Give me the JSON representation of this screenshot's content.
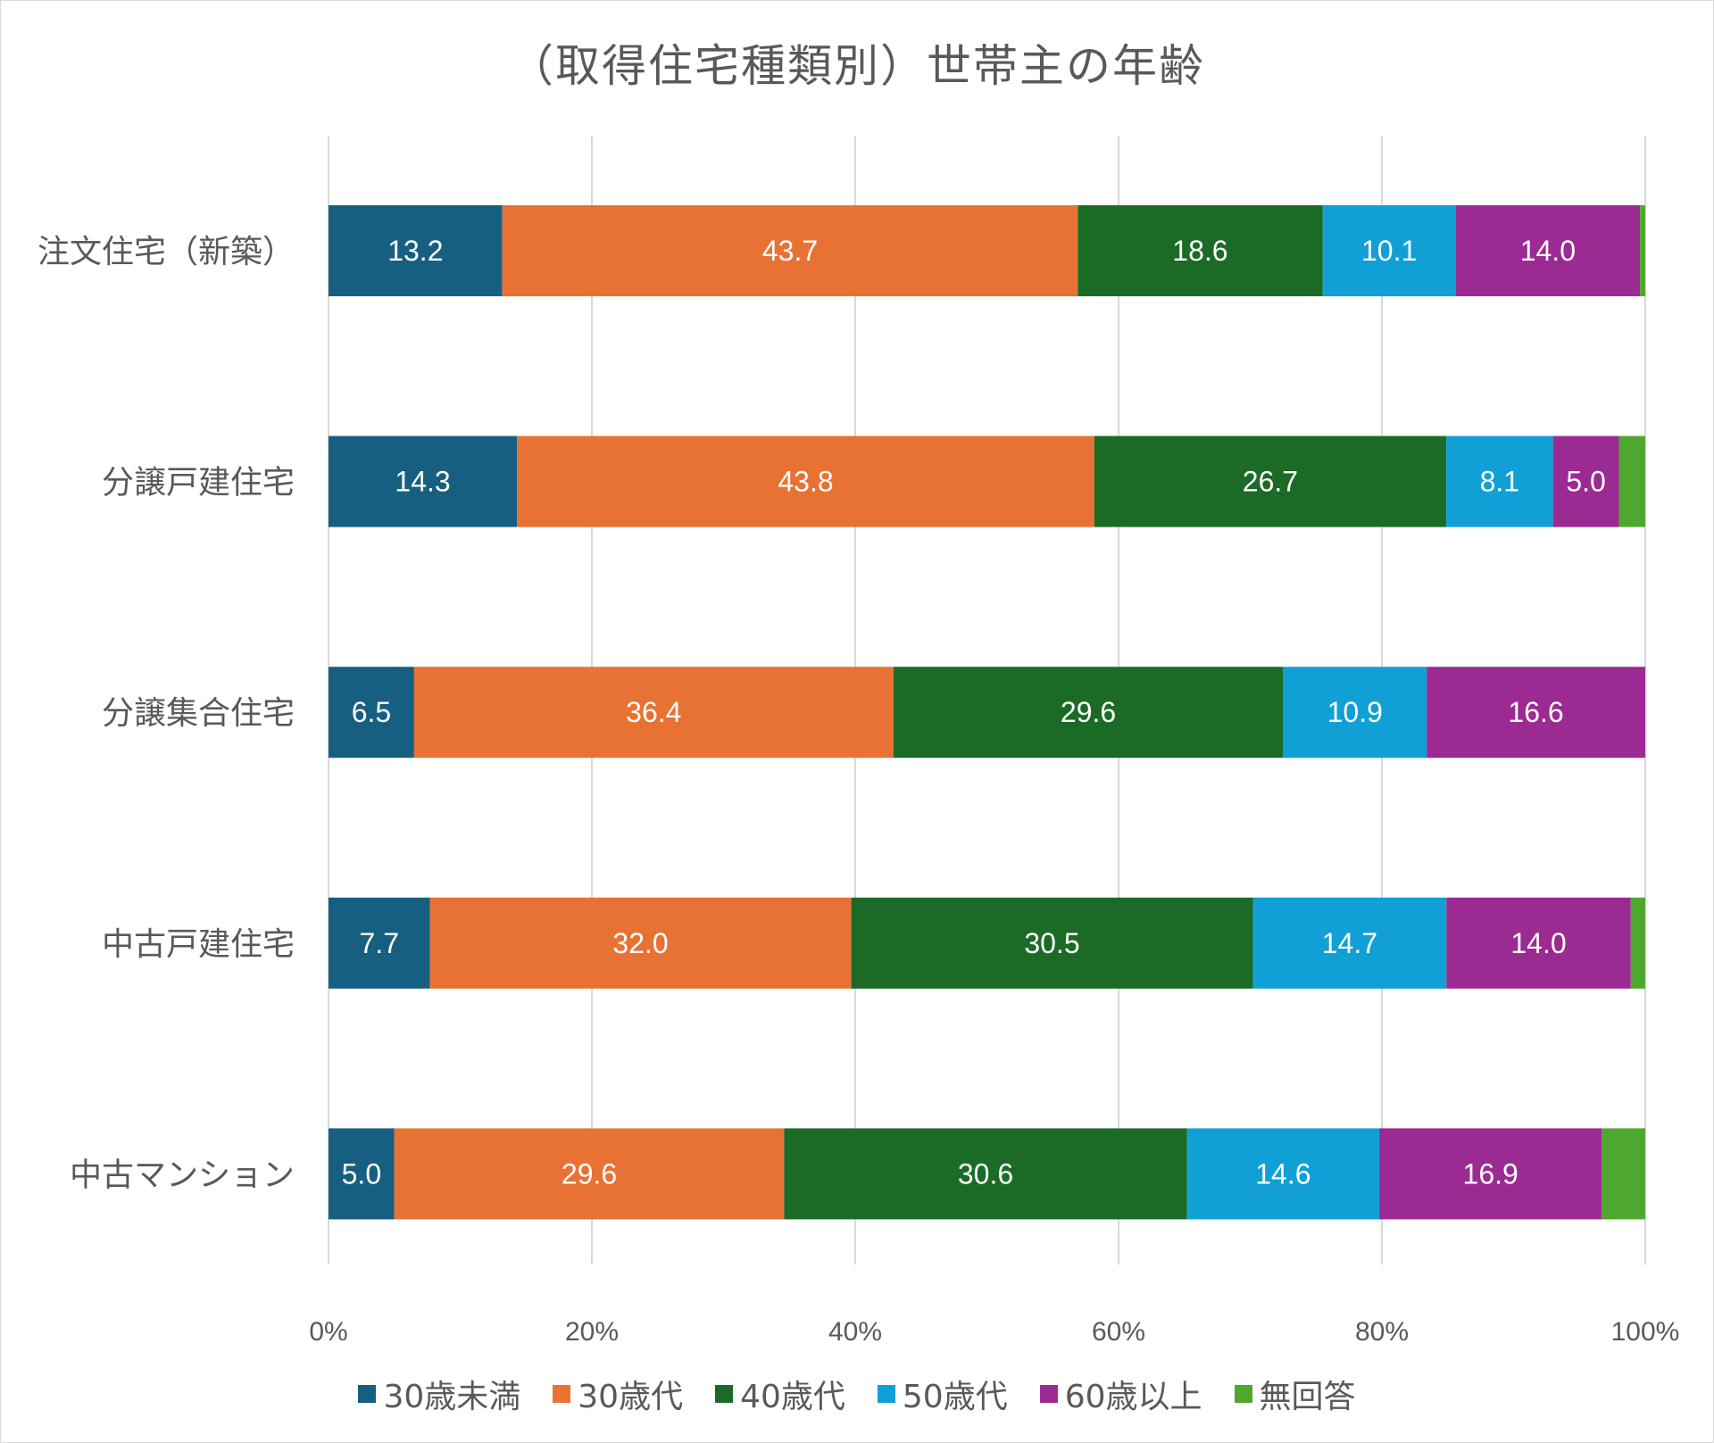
{
  "chart_data": {
    "type": "bar",
    "orientation": "horizontal",
    "stacked": "percent",
    "title": "（取得住宅種類別）世帯主の年齢",
    "categories": [
      "注文住宅（新築）",
      "分譲戸建住宅",
      "分譲集合住宅",
      "中古戸建住宅",
      "中古マンション"
    ],
    "series": [
      {
        "name": "30歳未満",
        "color": "#175f80",
        "values": [
          13.2,
          14.3,
          6.5,
          7.7,
          5.0
        ]
      },
      {
        "name": "30歳代",
        "color": "#e87233",
        "values": [
          43.7,
          43.8,
          36.4,
          32.0,
          29.6
        ]
      },
      {
        "name": "40歳代",
        "color": "#1b6b27",
        "values": [
          18.6,
          26.7,
          29.6,
          30.5,
          30.6
        ]
      },
      {
        "name": "50歳代",
        "color": "#11a0d6",
        "values": [
          10.1,
          8.1,
          10.9,
          14.7,
          14.6
        ]
      },
      {
        "name": "60歳以上",
        "color": "#9c2a93",
        "values": [
          14.0,
          5.0,
          16.6,
          14.0,
          16.9
        ]
      },
      {
        "name": "無回答",
        "color": "#4ea72e",
        "values": [
          0.4,
          2.0,
          0.0,
          1.1,
          3.3
        ]
      }
    ],
    "labeled_series": [
      "30歳未満",
      "30歳代",
      "40歳代",
      "50歳代",
      "60歳以上"
    ],
    "xlim": [
      0,
      100
    ],
    "x_ticks": [
      "0%",
      "20%",
      "40%",
      "60%",
      "80%",
      "100%"
    ],
    "grid": "vertical",
    "legend": "bottom"
  }
}
